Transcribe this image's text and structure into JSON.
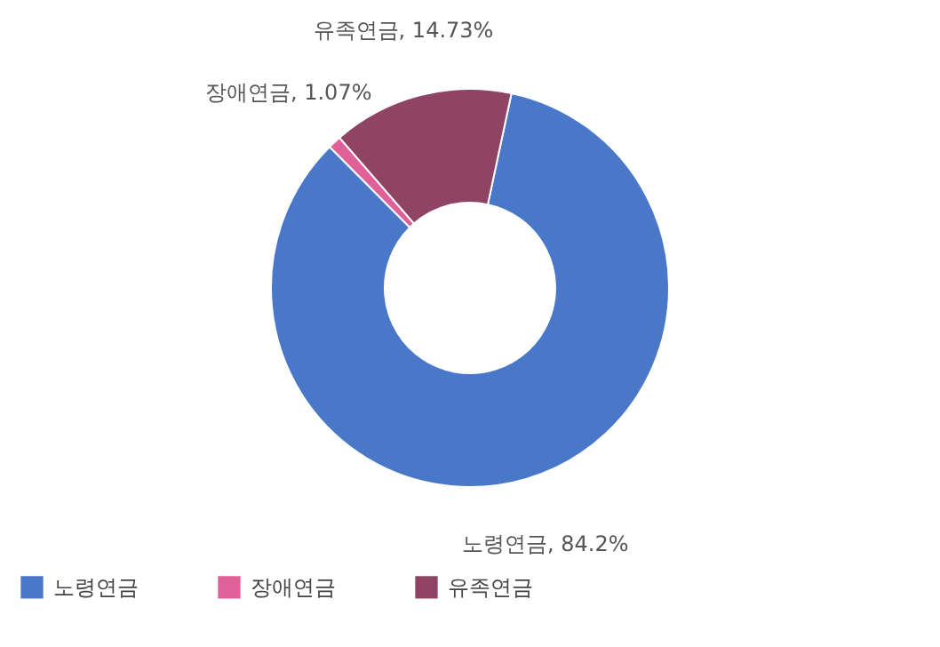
{
  "chart_data": {
    "type": "donut",
    "categories": [
      "노령연금",
      "장애연금",
      "유족연금"
    ],
    "values": [
      84.2,
      1.07,
      14.73
    ],
    "colors": [
      "#4a78c9",
      "#e0609a",
      "#8f4466"
    ],
    "value_labels": [
      "노령연금, 84.2%",
      "장애연금, 1.07%",
      "유족연금, 14.73%"
    ],
    "legend": "bottom"
  }
}
